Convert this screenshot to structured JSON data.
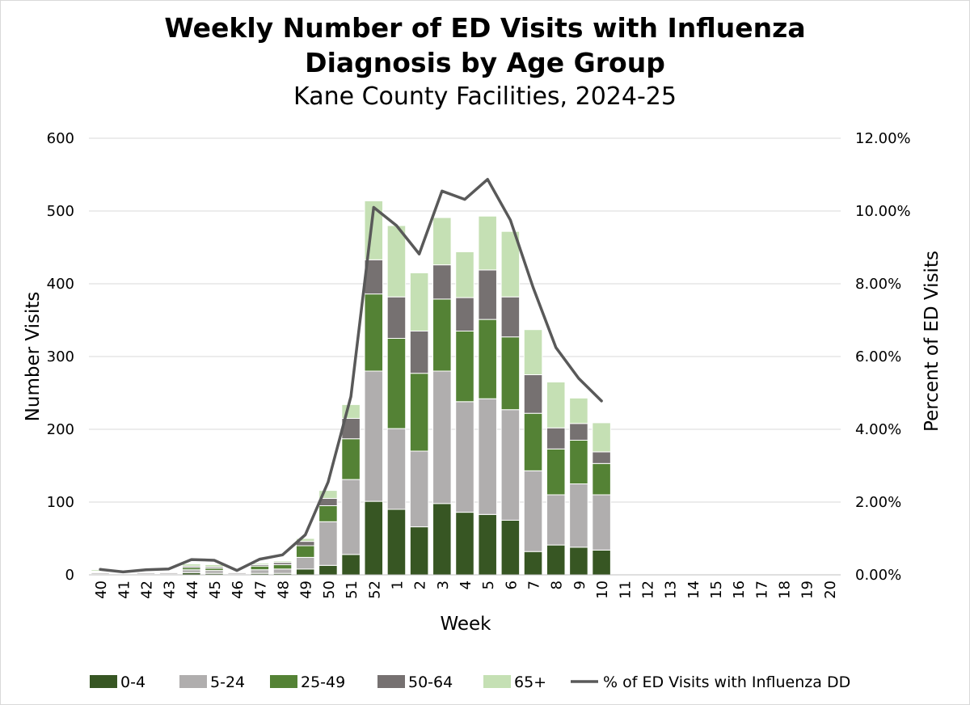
{
  "title_line1": "Weekly Number of ED Visits with Influenza",
  "title_line2": "Diagnosis by Age Group",
  "subtitle": "Kane County Facilities, 2024-25",
  "chart_data": {
    "type": "bar",
    "stacked": true,
    "categories": [
      "40",
      "41",
      "42",
      "43",
      "44",
      "45",
      "46",
      "47",
      "48",
      "49",
      "50",
      "51",
      "52",
      "1",
      "2",
      "3",
      "4",
      "5",
      "6",
      "7",
      "8",
      "9",
      "10",
      "11",
      "12",
      "13",
      "14",
      "15",
      "16",
      "17",
      "18",
      "19",
      "20"
    ],
    "series": [
      {
        "name": "0-4",
        "color": "#375623",
        "values": [
          1,
          1,
          1,
          1,
          3,
          2,
          1,
          2,
          2,
          8,
          13,
          28,
          101,
          90,
          66,
          98,
          86,
          83,
          75,
          32,
          41,
          38,
          34,
          null,
          null,
          null,
          null,
          null,
          null,
          null,
          null,
          null,
          null
        ]
      },
      {
        "name": "5-24",
        "color": "#b0aeae",
        "values": [
          2,
          1,
          2,
          2,
          4,
          4,
          2,
          5,
          6,
          16,
          60,
          103,
          179,
          111,
          104,
          182,
          152,
          159,
          152,
          111,
          69,
          87,
          76,
          null,
          null,
          null,
          null,
          null,
          null,
          null,
          null,
          null,
          null
        ]
      },
      {
        "name": "25-49",
        "color": "#548235",
        "values": [
          1,
          1,
          1,
          1,
          3,
          3,
          1,
          5,
          6,
          16,
          22,
          56,
          106,
          124,
          107,
          99,
          97,
          109,
          100,
          79,
          63,
          60,
          43,
          null,
          null,
          null,
          null,
          null,
          null,
          null,
          null,
          null,
          null
        ]
      },
      {
        "name": "50-64",
        "color": "#767171",
        "values": [
          1,
          0,
          1,
          1,
          2,
          2,
          1,
          2,
          3,
          6,
          10,
          28,
          47,
          57,
          58,
          47,
          46,
          68,
          55,
          53,
          29,
          23,
          16,
          null,
          null,
          null,
          null,
          null,
          null,
          null,
          null,
          null,
          null
        ]
      },
      {
        "name": "65+",
        "color": "#c5e0b4",
        "values": [
          2,
          1,
          1,
          1,
          3,
          3,
          1,
          2,
          2,
          4,
          11,
          19,
          81,
          98,
          80,
          65,
          63,
          74,
          90,
          62,
          63,
          35,
          40,
          null,
          null,
          null,
          null,
          null,
          null,
          null,
          null,
          null,
          null
        ]
      }
    ],
    "line_series": {
      "name": "% of ED Visits with Influenza DD",
      "color": "#595959",
      "axis": "right",
      "values": [
        0.0015,
        0.0008,
        0.0014,
        0.0016,
        0.0042,
        0.004,
        0.0012,
        0.0043,
        0.0055,
        0.011,
        0.0255,
        0.049,
        0.101,
        0.096,
        0.0882,
        0.1055,
        0.1032,
        0.1087,
        0.0975,
        0.079,
        0.0625,
        0.054,
        0.0478,
        null,
        null,
        null,
        null,
        null,
        null,
        null,
        null,
        null,
        null
      ]
    },
    "xlabel": "Week",
    "ylabel": "Number Visits",
    "y2label": "Percent of ED Visits",
    "ylim": [
      0,
      600
    ],
    "y2lim": [
      0,
      0.12
    ],
    "yticks": [
      "0",
      "100",
      "200",
      "300",
      "400",
      "500",
      "600"
    ],
    "y2ticks": [
      "0.00%",
      "2.00%",
      "4.00%",
      "6.00%",
      "8.00%",
      "10.00%",
      "12.00%"
    ],
    "grid": true,
    "legend_position": "bottom"
  }
}
